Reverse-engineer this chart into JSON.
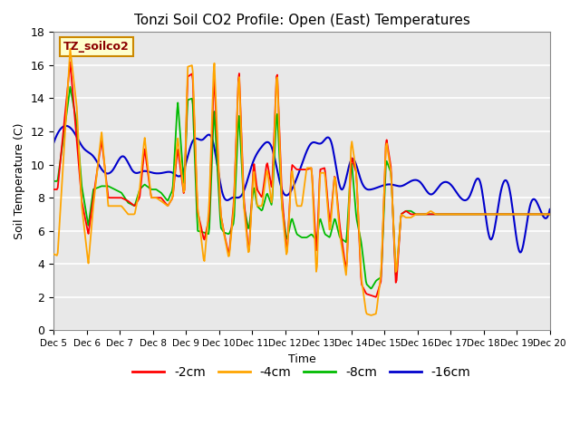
{
  "title": "Tonzi Soil CO2 Profile: Open (East) Temperatures",
  "xlabel": "Time",
  "ylabel": "Soil Temperature (C)",
  "ylim": [
    0,
    18
  ],
  "xlim": [
    0,
    15
  ],
  "xtick_labels": [
    "Dec 5",
    "Dec 6",
    "Dec 7",
    "Dec 8",
    "Dec 9",
    "Dec 10",
    "Dec 11",
    "Dec 12",
    "Dec 13",
    "Dec 14",
    "Dec 15",
    "Dec 16",
    "Dec 17",
    "Dec 18",
    "Dec 19",
    "Dec 20"
  ],
  "ytick_labels": [
    "0",
    "2",
    "4",
    "6",
    "8",
    "10",
    "12",
    "14",
    "16",
    "18"
  ],
  "colors": {
    "-2cm": "#FF0000",
    "-4cm": "#FFA500",
    "-8cm": "#00BB00",
    "-16cm": "#0000CC"
  },
  "legend_label": "TZ_soilco2",
  "plot_background": "#E8E8E8",
  "grid_color": "#FFFFFF",
  "t4_x": [
    0.0,
    0.12,
    0.5,
    0.7,
    0.85,
    1.05,
    1.2,
    1.45,
    1.65,
    1.85,
    2.05,
    2.25,
    2.45,
    2.6,
    2.75,
    2.95,
    3.1,
    3.25,
    3.45,
    3.6,
    3.75,
    3.95,
    4.05,
    4.2,
    4.35,
    4.55,
    4.7,
    4.85,
    5.05,
    5.15,
    5.3,
    5.45,
    5.6,
    5.75,
    5.9,
    6.05,
    6.15,
    6.3,
    6.45,
    6.6,
    6.75,
    6.9,
    7.05,
    7.2,
    7.35,
    7.5,
    7.65,
    7.8,
    7.95,
    8.05,
    8.2,
    8.35,
    8.5,
    8.65,
    8.85,
    9.0,
    9.15,
    9.3,
    9.45,
    9.6,
    9.75,
    9.9,
    10.05,
    10.2,
    10.35,
    10.5,
    10.65,
    10.8,
    10.95,
    11.1,
    11.25,
    11.4,
    11.55,
    11.7,
    11.85,
    12.0,
    12.15,
    12.3,
    12.45,
    12.65,
    12.8,
    13.0,
    13.15,
    13.3,
    13.45,
    13.65,
    13.8,
    14.0,
    14.15,
    14.3,
    14.5,
    14.65,
    14.85,
    15.0
  ],
  "t4_y": [
    4.6,
    4.5,
    17.0,
    13.5,
    7.5,
    4.0,
    7.5,
    12.0,
    7.5,
    7.5,
    7.5,
    7.0,
    7.0,
    8.5,
    11.7,
    8.0,
    8.0,
    7.8,
    7.5,
    8.0,
    11.7,
    8.0,
    15.9,
    16.0,
    7.5,
    4.0,
    7.5,
    16.5,
    7.0,
    5.8,
    4.3,
    7.5,
    15.8,
    7.5,
    4.4,
    9.8,
    7.5,
    7.5,
    9.8,
    7.5,
    15.9,
    7.5,
    4.3,
    9.8,
    7.5,
    7.5,
    9.8,
    9.8,
    3.0,
    9.5,
    9.5,
    5.8,
    9.5,
    5.8,
    3.2,
    11.6,
    9.5,
    3.2,
    1.0,
    0.9,
    1.0,
    3.5,
    11.5,
    9.5,
    3.2,
    7.0,
    6.8,
    6.8,
    7.0,
    7.0,
    7.0,
    7.2,
    7.0,
    7.0,
    7.0,
    7.0,
    7.0,
    7.0,
    7.0,
    7.0,
    7.0,
    7.0,
    7.0,
    7.0,
    7.0,
    7.0,
    7.0,
    7.0,
    7.0,
    7.0,
    7.0,
    7.0,
    7.0,
    7.0
  ],
  "t2_x": [
    0.0,
    0.12,
    0.5,
    0.7,
    0.85,
    1.05,
    1.2,
    1.45,
    1.65,
    1.85,
    2.05,
    2.25,
    2.45,
    2.6,
    2.75,
    2.95,
    3.1,
    3.25,
    3.45,
    3.6,
    3.75,
    3.95,
    4.05,
    4.2,
    4.35,
    4.55,
    4.7,
    4.85,
    5.05,
    5.15,
    5.3,
    5.45,
    5.6,
    5.75,
    5.9,
    6.05,
    6.15,
    6.3,
    6.45,
    6.6,
    6.75,
    6.9,
    7.05,
    7.2,
    7.35,
    7.5,
    7.65,
    7.8,
    7.95,
    8.05,
    8.2,
    8.35,
    8.5,
    8.65,
    8.85,
    9.0,
    9.15,
    9.3,
    9.45,
    9.6,
    9.75,
    9.9,
    10.05,
    10.2,
    10.35,
    10.5,
    10.65,
    10.8,
    10.95,
    11.1,
    11.25,
    11.55,
    11.85,
    12.0,
    12.3,
    12.65,
    12.8,
    13.0,
    13.15,
    13.45,
    13.65,
    13.8,
    14.0,
    14.15,
    14.3,
    14.5,
    14.65,
    14.85,
    15.0
  ],
  "t2_y": [
    8.5,
    8.5,
    16.2,
    11.5,
    7.8,
    5.8,
    8.0,
    11.5,
    8.0,
    8.0,
    8.0,
    7.8,
    7.5,
    8.0,
    11.0,
    8.0,
    8.0,
    8.0,
    7.5,
    8.0,
    11.0,
    8.0,
    15.3,
    15.5,
    7.2,
    5.4,
    6.8,
    15.5,
    7.0,
    5.9,
    4.5,
    7.8,
    16.0,
    8.0,
    4.5,
    10.2,
    8.5,
    8.0,
    10.2,
    8.5,
    16.0,
    8.2,
    4.5,
    10.0,
    9.7,
    9.7,
    9.7,
    9.8,
    4.4,
    9.7,
    9.8,
    6.3,
    9.5,
    6.3,
    3.5,
    10.5,
    9.5,
    2.8,
    2.2,
    2.1,
    2.0,
    3.0,
    11.7,
    9.8,
    2.5,
    7.0,
    7.2,
    7.0,
    7.0,
    7.0,
    7.0,
    7.0,
    7.0,
    7.0,
    7.0,
    7.0,
    7.0,
    7.0,
    7.0,
    7.0,
    7.0,
    7.0,
    7.0,
    7.0,
    7.0,
    7.0,
    7.0,
    7.0,
    7.0
  ],
  "t8_x": [
    0.0,
    0.12,
    0.5,
    0.7,
    0.85,
    1.05,
    1.2,
    1.45,
    1.65,
    1.85,
    2.05,
    2.25,
    2.45,
    2.6,
    2.75,
    2.95,
    3.1,
    3.25,
    3.45,
    3.6,
    3.75,
    3.95,
    4.05,
    4.2,
    4.35,
    4.55,
    4.7,
    4.85,
    5.05,
    5.15,
    5.3,
    5.45,
    5.6,
    5.75,
    5.9,
    6.05,
    6.15,
    6.3,
    6.45,
    6.6,
    6.75,
    6.9,
    7.05,
    7.2,
    7.35,
    7.5,
    7.65,
    7.8,
    7.95,
    8.05,
    8.2,
    8.35,
    8.5,
    8.65,
    8.85,
    9.0,
    9.15,
    9.3,
    9.45,
    9.6,
    9.75,
    9.9,
    10.05,
    10.2,
    10.35,
    10.5,
    10.65,
    10.8,
    10.95,
    11.1,
    11.25,
    11.55,
    11.85,
    12.0,
    12.3,
    12.65,
    12.8,
    13.0,
    13.15,
    13.45,
    13.65,
    13.8,
    14.0,
    14.15,
    14.3,
    14.5,
    14.65,
    14.85,
    15.0
  ],
  "t8_y": [
    9.0,
    9.0,
    14.7,
    12.5,
    8.7,
    6.3,
    8.5,
    8.7,
    8.7,
    8.5,
    8.3,
    7.7,
    7.5,
    8.5,
    8.8,
    8.5,
    8.5,
    8.3,
    7.8,
    8.5,
    13.9,
    8.5,
    13.9,
    14.0,
    6.0,
    5.9,
    5.8,
    13.5,
    6.2,
    5.9,
    5.8,
    6.5,
    13.3,
    7.5,
    6.0,
    8.7,
    7.5,
    7.2,
    8.3,
    7.5,
    13.5,
    7.5,
    5.4,
    6.8,
    5.8,
    5.6,
    5.6,
    5.8,
    5.4,
    6.8,
    5.8,
    5.6,
    6.8,
    5.6,
    5.3,
    10.4,
    6.8,
    5.3,
    2.8,
    2.5,
    3.0,
    3.2,
    10.3,
    9.5,
    3.0,
    7.0,
    7.2,
    7.2,
    7.0,
    7.0,
    7.0,
    7.0,
    7.0,
    7.0,
    7.0,
    7.0,
    7.0,
    7.0,
    7.0,
    7.0,
    7.0,
    7.0,
    7.0,
    7.0,
    7.0,
    7.0,
    7.0,
    7.0,
    7.0
  ],
  "t16_x": [
    0.0,
    0.3,
    0.6,
    0.9,
    1.2,
    1.5,
    1.8,
    2.1,
    2.4,
    2.7,
    3.0,
    3.3,
    3.6,
    3.9,
    4.2,
    4.5,
    4.8,
    5.1,
    5.4,
    5.7,
    6.0,
    6.3,
    6.6,
    6.9,
    7.2,
    7.5,
    7.8,
    8.1,
    8.4,
    8.7,
    9.0,
    9.3,
    9.6,
    9.9,
    10.2,
    10.5,
    10.8,
    11.1,
    11.4,
    11.7,
    12.0,
    12.3,
    12.6,
    12.9,
    13.2,
    13.5,
    13.8,
    14.1,
    14.4,
    14.7,
    15.0
  ],
  "t16_y": [
    11.3,
    12.3,
    12.0,
    11.0,
    10.5,
    9.6,
    9.7,
    10.5,
    9.6,
    9.6,
    9.5,
    9.5,
    9.5,
    9.5,
    11.4,
    11.5,
    11.5,
    8.3,
    8.0,
    8.2,
    10.0,
    11.1,
    11.0,
    8.5,
    8.5,
    10.0,
    11.3,
    11.3,
    11.3,
    8.5,
    10.3,
    9.0,
    8.5,
    8.7,
    8.8,
    8.7,
    9.0,
    8.9,
    8.2,
    8.8,
    8.8,
    8.0,
    8.2,
    8.9,
    5.5,
    8.2,
    8.3,
    4.7,
    7.5,
    7.3,
    7.3
  ]
}
